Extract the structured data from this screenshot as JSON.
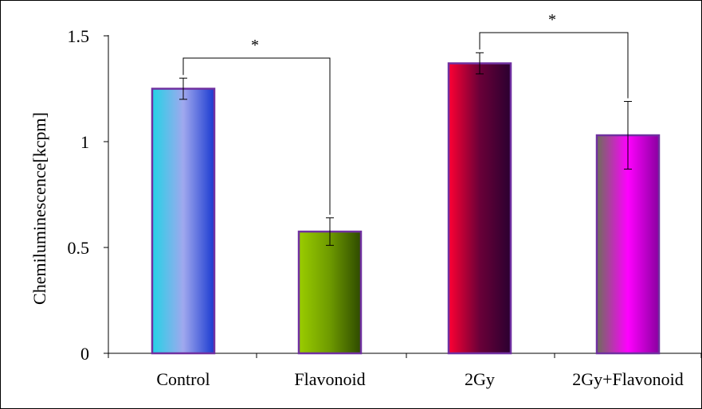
{
  "chart_data": {
    "type": "bar",
    "title": "",
    "xlabel": "",
    "ylabel": "Chemiluminescence[kcpm]",
    "ylim": [
      0,
      1.5
    ],
    "yticks": [
      0,
      0.5,
      1,
      1.5
    ],
    "ytick_labels": [
      "0",
      "0.5",
      "1",
      "1.5"
    ],
    "categories": [
      "Control",
      "Flavonoid",
      "2Gy",
      "2Gy+Flavonoid"
    ],
    "values": [
      1.25,
      0.575,
      1.37,
      1.03
    ],
    "errors": [
      0.05,
      0.065,
      0.05,
      0.16
    ],
    "grid": false,
    "legend": "none",
    "bar_outline_color": "#7030a0",
    "bar_gradients": [
      [
        "#22d3e6",
        "#a0a8ee",
        "#1a3ad0"
      ],
      [
        "#9acd00",
        "#6e9a00",
        "#2e4a00"
      ],
      [
        "#ff0033",
        "#6a0038",
        "#2a0030"
      ],
      [
        "#6e6e5a",
        "#ff00ff",
        "#8a00a0"
      ]
    ],
    "significance": [
      {
        "between": [
          0,
          1
        ],
        "label": "*"
      },
      {
        "between": [
          2,
          3
        ],
        "label": "*"
      }
    ]
  }
}
